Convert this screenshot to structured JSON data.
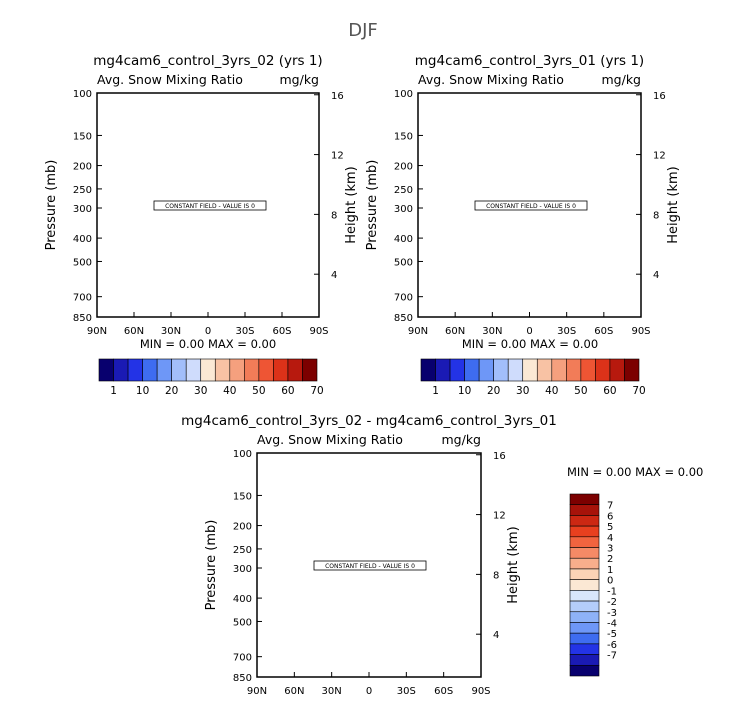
{
  "page": {
    "title": "DJF"
  },
  "chart_data": [
    {
      "type": "heatmap",
      "title": "mg4cam6_control_3yrs_02 (yrs 1)",
      "subtitle_left": "Avg. Snow Mixing Ratio",
      "subtitle_right": "mg/kg",
      "ylabel": "Pressure (mb)",
      "ylabel_right": "Height (km)",
      "x_ticks": [
        "90N",
        "60N",
        "30N",
        "0",
        "30S",
        "60S",
        "90S"
      ],
      "x_values": [
        90,
        60,
        30,
        0,
        -30,
        -60,
        -90
      ],
      "xlim": [
        90,
        -90
      ],
      "y_ticks": [
        "100",
        "150",
        "200",
        "250",
        "300",
        "400",
        "500",
        "700",
        "850"
      ],
      "y_values": [
        100,
        150,
        200,
        250,
        300,
        400,
        500,
        700,
        850
      ],
      "ylim": [
        100,
        850
      ],
      "y_scale": "log",
      "y_right_ticks": [
        "16",
        "12",
        "8",
        "4"
      ],
      "y_right_values": [
        16,
        12,
        8,
        4
      ],
      "annotation": "CONSTANT FIELD - VALUE IS 0",
      "stats_text": "MIN =    0.00   MAX =    0.00",
      "colorbar": {
        "orientation": "horizontal",
        "labels": [
          "1",
          "10",
          "20",
          "30",
          "40",
          "50",
          "60",
          "70"
        ],
        "colors": [
          "#08006e",
          "#1a1ab4",
          "#2333e6",
          "#3e6cf0",
          "#6e97f7",
          "#a2befa",
          "#cfdcfc",
          "#fbe8d4",
          "#f8c2a4",
          "#f5a07e",
          "#f27c58",
          "#ee5534",
          "#dc3219",
          "#b7190e",
          "#7c0000"
        ]
      }
    },
    {
      "type": "heatmap",
      "title": "mg4cam6_control_3yrs_01 (yrs 1)",
      "subtitle_left": "Avg. Snow Mixing Ratio",
      "subtitle_right": "mg/kg",
      "ylabel": "Pressure (mb)",
      "ylabel_right": "Height (km)",
      "x_ticks": [
        "90N",
        "60N",
        "30N",
        "0",
        "30S",
        "60S",
        "90S"
      ],
      "x_values": [
        90,
        60,
        30,
        0,
        -30,
        -60,
        -90
      ],
      "xlim": [
        90,
        -90
      ],
      "y_ticks": [
        "100",
        "150",
        "200",
        "250",
        "300",
        "400",
        "500",
        "700",
        "850"
      ],
      "y_values": [
        100,
        150,
        200,
        250,
        300,
        400,
        500,
        700,
        850
      ],
      "ylim": [
        100,
        850
      ],
      "y_scale": "log",
      "y_right_ticks": [
        "16",
        "12",
        "8",
        "4"
      ],
      "y_right_values": [
        16,
        12,
        8,
        4
      ],
      "annotation": "CONSTANT FIELD - VALUE IS 0",
      "stats_text": "MIN =    0.00   MAX =    0.00",
      "colorbar": {
        "orientation": "horizontal",
        "labels": [
          "1",
          "10",
          "20",
          "30",
          "40",
          "50",
          "60",
          "70"
        ],
        "colors": [
          "#08006e",
          "#1a1ab4",
          "#2333e6",
          "#3e6cf0",
          "#6e97f7",
          "#a2befa",
          "#cfdcfc",
          "#fbe8d4",
          "#f8c2a4",
          "#f5a07e",
          "#f27c58",
          "#ee5534",
          "#dc3219",
          "#b7190e",
          "#7c0000"
        ]
      }
    },
    {
      "type": "heatmap",
      "title": "mg4cam6_control_3yrs_02 - mg4cam6_control_3yrs_01",
      "subtitle_left": "Avg. Snow Mixing Ratio",
      "subtitle_right": "mg/kg",
      "ylabel": "Pressure (mb)",
      "ylabel_right": "Height (km)",
      "x_ticks": [
        "90N",
        "60N",
        "30N",
        "0",
        "30S",
        "60S",
        "90S"
      ],
      "x_values": [
        90,
        60,
        30,
        0,
        -30,
        -60,
        -90
      ],
      "xlim": [
        90,
        -90
      ],
      "y_ticks": [
        "100",
        "150",
        "200",
        "250",
        "300",
        "400",
        "500",
        "700",
        "850"
      ],
      "y_values": [
        100,
        150,
        200,
        250,
        300,
        400,
        500,
        700,
        850
      ],
      "ylim": [
        100,
        850
      ],
      "y_scale": "log",
      "y_right_ticks": [
        "16",
        "12",
        "8",
        "4"
      ],
      "y_right_values": [
        16,
        12,
        8,
        4
      ],
      "annotation": "CONSTANT FIELD - VALUE IS 0",
      "stats_text": "MIN =    0.00   MAX =    0.00",
      "colorbar": {
        "orientation": "vertical",
        "labels": [
          "7",
          "6",
          "5",
          "4",
          "3",
          "2",
          "1",
          "0",
          "-1",
          "-2",
          "-3",
          "-4",
          "-5",
          "-6",
          "-7"
        ],
        "colors": [
          "#7c0000",
          "#a7130a",
          "#cc2813",
          "#e8401f",
          "#f1643f",
          "#f58a66",
          "#f8ae8c",
          "#fbd3b6",
          "#fbe8d4",
          "#d8e6fb",
          "#b4cdfa",
          "#8eb2f7",
          "#6e97f7",
          "#3e6cf0",
          "#2333e6",
          "#1a1ab4",
          "#08006e"
        ]
      }
    }
  ]
}
